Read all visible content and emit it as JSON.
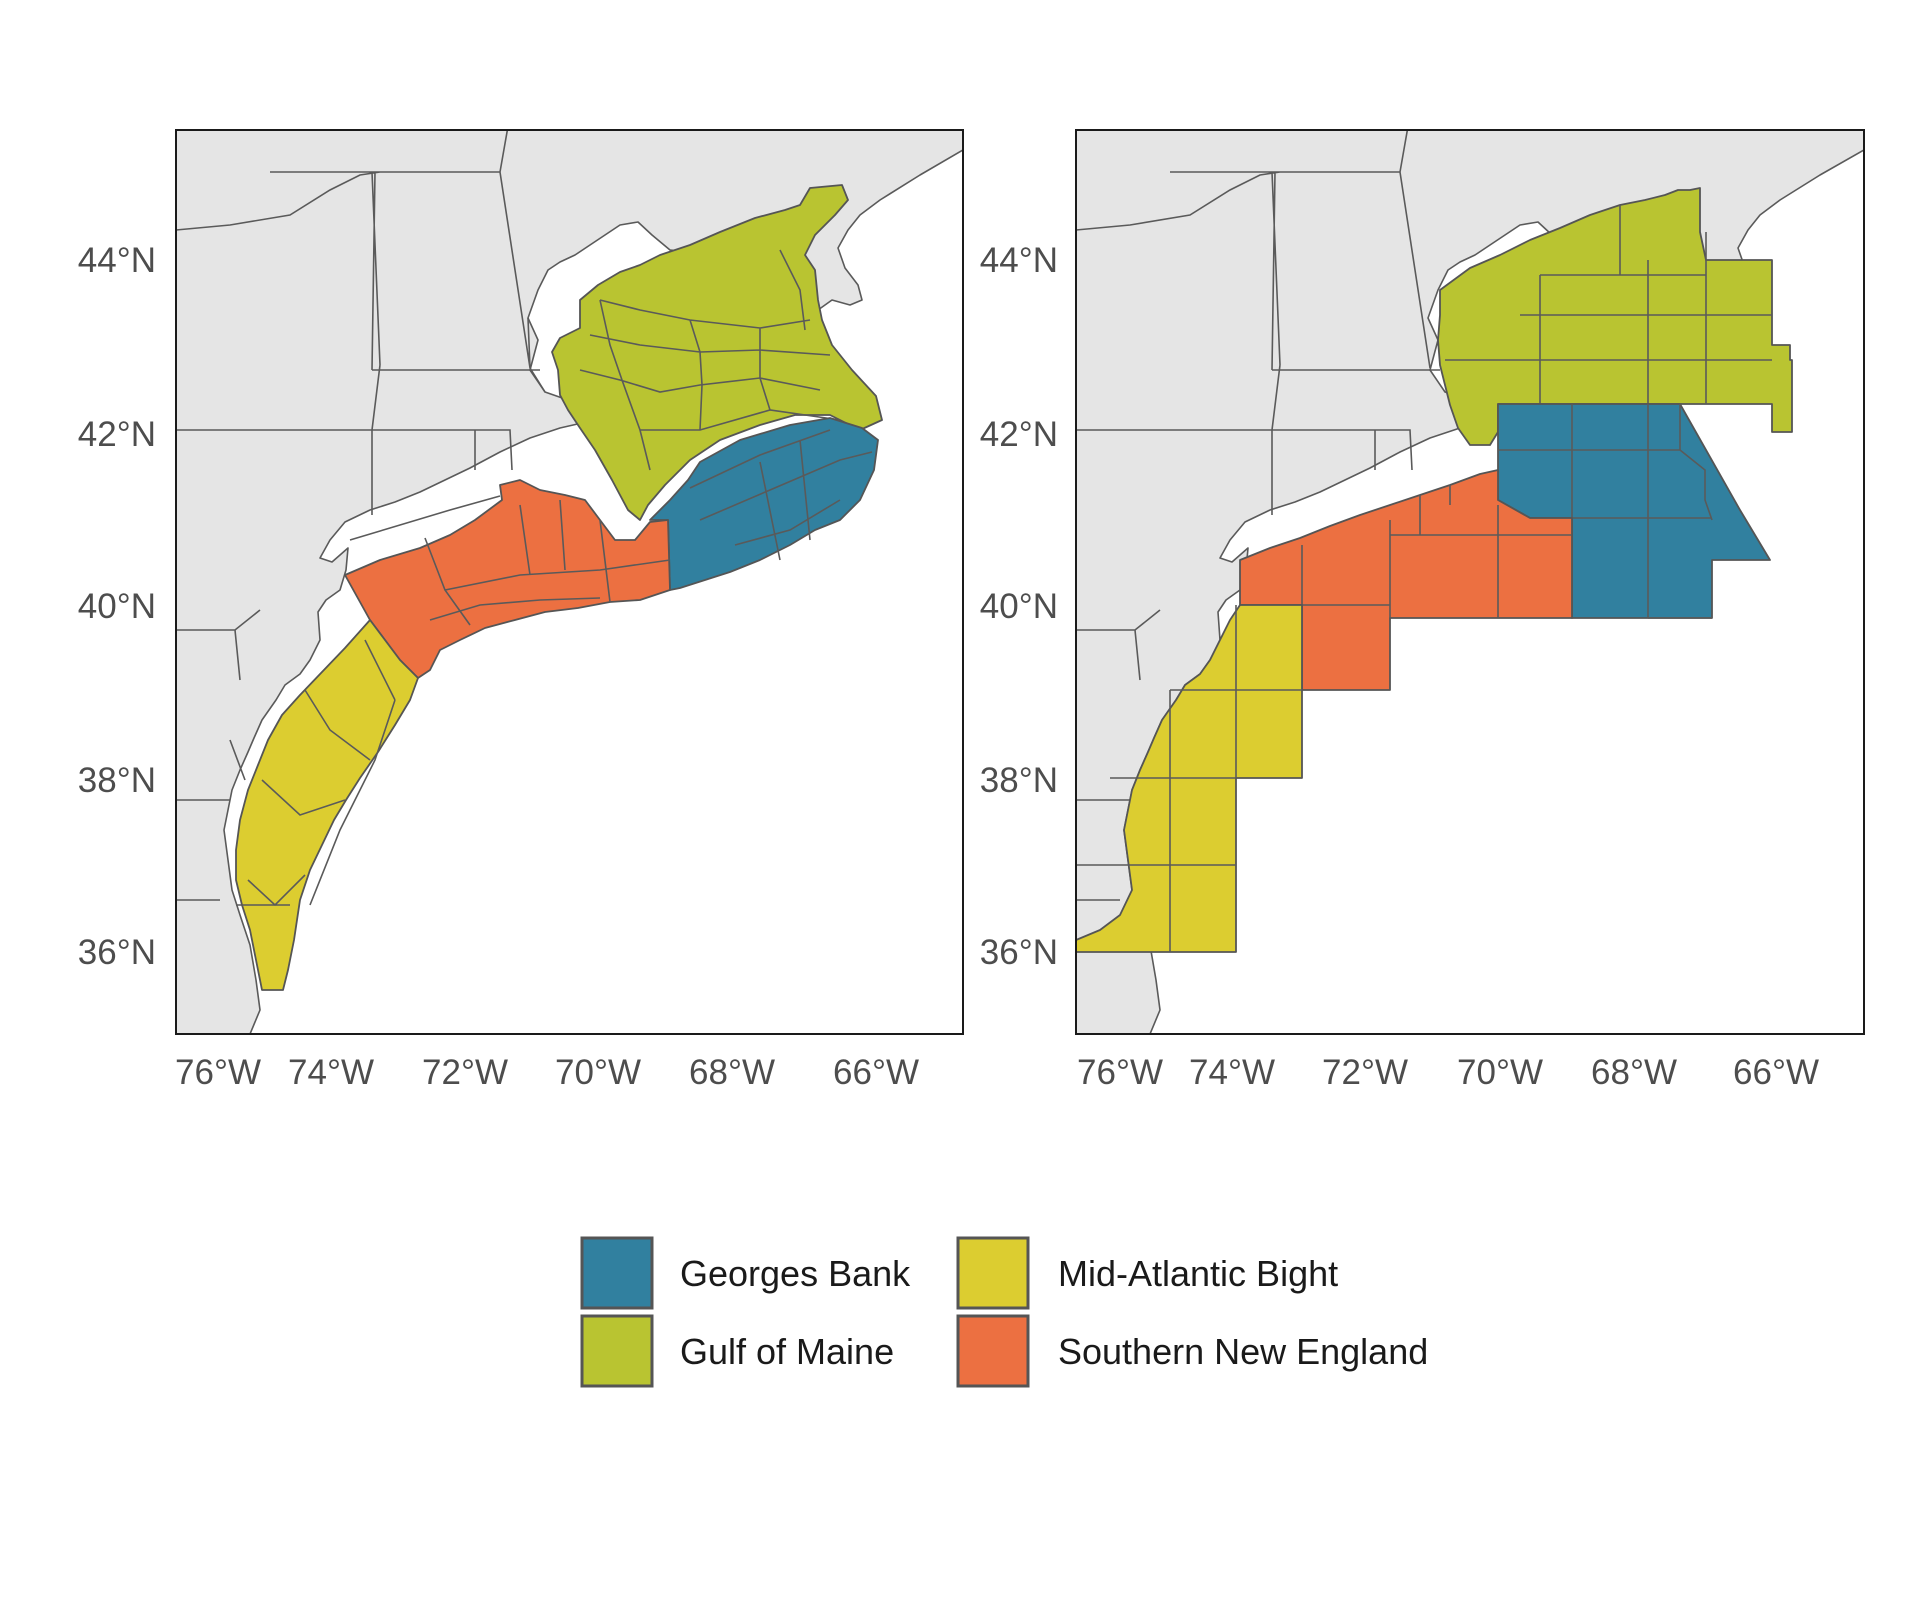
{
  "colors": {
    "georges_bank": "#31809f",
    "gulf_of_maine": "#b9c431",
    "mid_atlantic_bight": "#dccd30",
    "southern_new_england": "#ec7041",
    "land": "#e5e5e5",
    "outline": "#555555"
  },
  "axes": {
    "x_ticks": [
      "76°W",
      "74°W",
      "72°W",
      "70°W",
      "68°W",
      "66°W"
    ],
    "y_ticks": [
      "44°N",
      "42°N",
      "40°N",
      "38°N",
      "36°N"
    ]
  },
  "panels": [
    {
      "style": "ecological-production-units"
    },
    {
      "style": "statistical-area-grid"
    }
  ],
  "legend": {
    "items": [
      {
        "label": "Georges Bank",
        "color": "#31809f"
      },
      {
        "label": "Mid-Atlantic Bight",
        "color": "#dccd30"
      },
      {
        "label": "Gulf of Maine",
        "color": "#b9c431"
      },
      {
        "label": "Southern New England",
        "color": "#ec7041"
      }
    ]
  }
}
